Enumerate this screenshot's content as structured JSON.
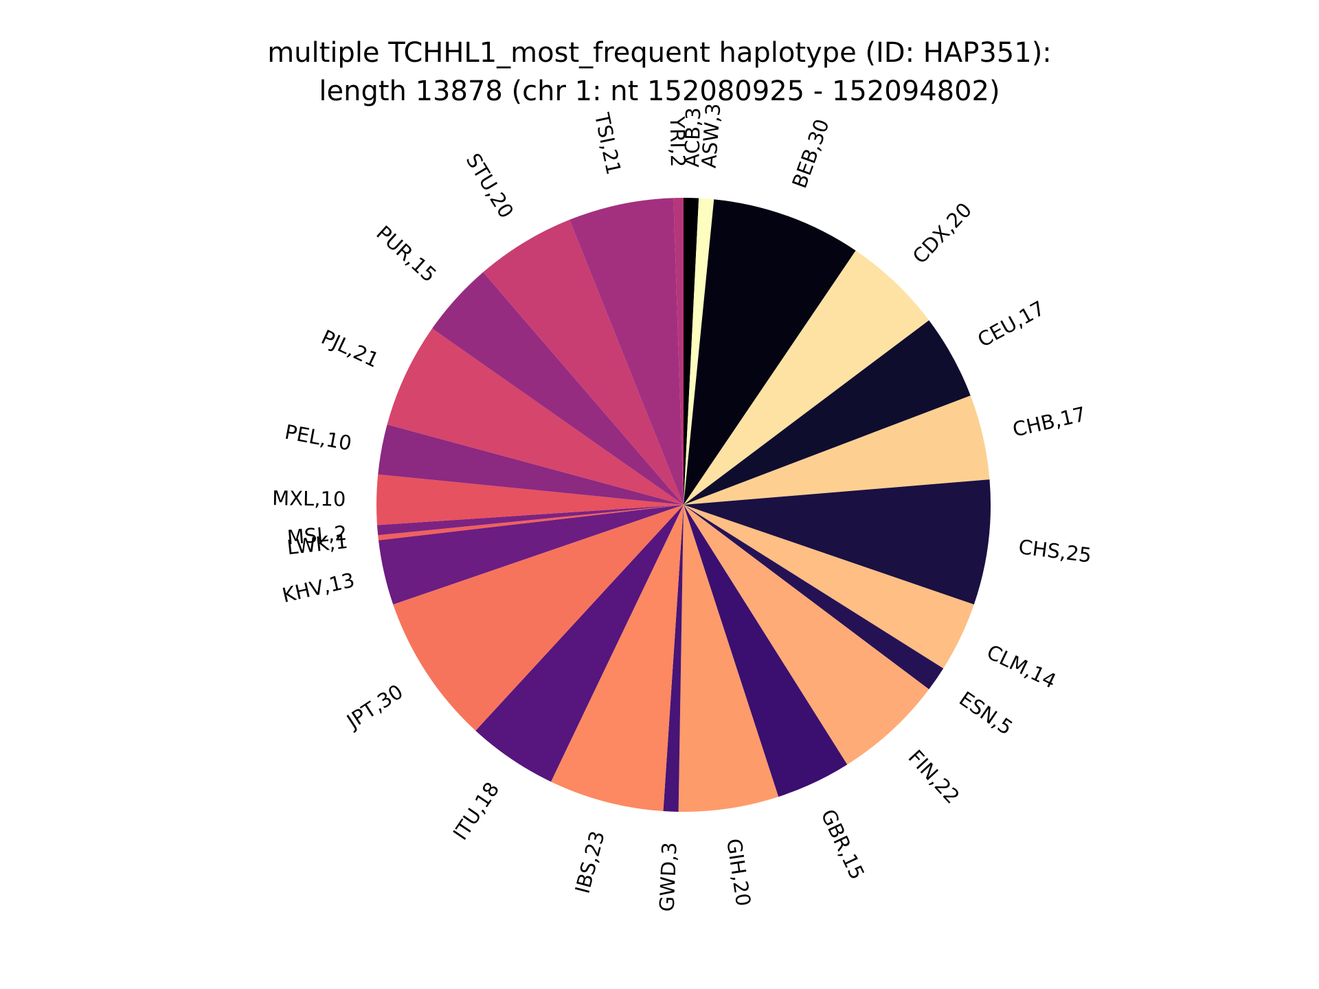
{
  "chart_data": {
    "type": "pie",
    "title_lines": [
      "multiple TCHHL1_most_frequent haplotype (ID: HAP351):",
      "length 13878 (chr 1: nt 152080925 - 152094802)"
    ],
    "start_angle_deg": 90,
    "direction": "clockwise",
    "slices": [
      {
        "name": "ACB",
        "value": 3,
        "label": "ACB,3",
        "color": "#000004"
      },
      {
        "name": "ASW",
        "value": 3,
        "label": "ASW,3",
        "color": "#fcfdbf"
      },
      {
        "name": "BEB",
        "value": 30,
        "label": "BEB,30",
        "color": "#030312"
      },
      {
        "name": "CDX",
        "value": 20,
        "label": "CDX,20",
        "color": "#fde2a3"
      },
      {
        "name": "CEU",
        "value": 17,
        "label": "CEU,17",
        "color": "#0f0d2e"
      },
      {
        "name": "CHB",
        "value": 17,
        "label": "CHB,17",
        "color": "#fdd092"
      },
      {
        "name": "CHS",
        "value": 25,
        "label": "CHS,25",
        "color": "#1a1042"
      },
      {
        "name": "CLM",
        "value": 14,
        "label": "CLM,14",
        "color": "#febe84"
      },
      {
        "name": "ESN",
        "value": 5,
        "label": "ESN,5",
        "color": "#251255"
      },
      {
        "name": "FIN",
        "value": 22,
        "label": "FIN,22",
        "color": "#feab77"
      },
      {
        "name": "GBR",
        "value": 15,
        "label": "GBR,15",
        "color": "#3b0f70"
      },
      {
        "name": "GIH",
        "value": 20,
        "label": "GIH,20",
        "color": "#fd9b6b"
      },
      {
        "name": "GWD",
        "value": 3,
        "label": "GWD,3",
        "color": "#471477"
      },
      {
        "name": "IBS",
        "value": 23,
        "label": "IBS,23",
        "color": "#fc8961"
      },
      {
        "name": "ITU",
        "value": 18,
        "label": "ITU,18",
        "color": "#57157e"
      },
      {
        "name": "JPT",
        "value": 30,
        "label": "JPT,30",
        "color": "#f7745c"
      },
      {
        "name": "KHV",
        "value": 13,
        "label": "KHV,13",
        "color": "#6b1d81"
      },
      {
        "name": "LWK",
        "value": 1,
        "label": "LWK,1",
        "color": "#f1605d"
      },
      {
        "name": "MSL",
        "value": 2,
        "label": "MSL,2",
        "color": "#7c2382"
      },
      {
        "name": "MXL",
        "value": 10,
        "label": "MXL,10",
        "color": "#e6525f"
      },
      {
        "name": "PEL",
        "value": 10,
        "label": "PEL,10",
        "color": "#8c2981"
      },
      {
        "name": "PJL",
        "value": 21,
        "label": "PJL,21",
        "color": "#d6456c"
      },
      {
        "name": "PUR",
        "value": 15,
        "label": "PUR,15",
        "color": "#962c80"
      },
      {
        "name": "STU",
        "value": 20,
        "label": "STU,20",
        "color": "#c83e73"
      },
      {
        "name": "TSI",
        "value": 21,
        "label": "TSI,21",
        "color": "#a3307e"
      },
      {
        "name": "YRI",
        "value": 2,
        "label": "YRI,2",
        "color": "#b5367a"
      }
    ]
  }
}
